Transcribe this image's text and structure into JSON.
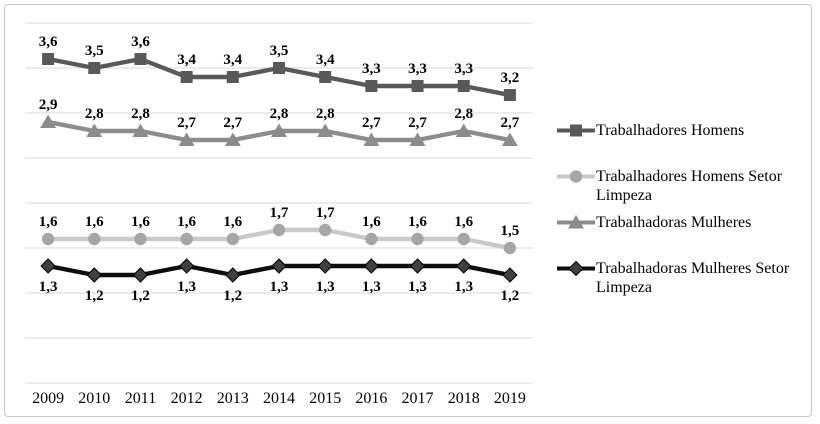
{
  "chart_data": {
    "type": "line",
    "title": "",
    "xlabel": "",
    "ylabel": "",
    "categories": [
      "2009",
      "2010",
      "2011",
      "2012",
      "2013",
      "2014",
      "2015",
      "2016",
      "2017",
      "2018",
      "2019"
    ],
    "ylim": [
      0,
      4
    ],
    "grid_step": 0.5,
    "grid": true,
    "y_axis_labels_visible": false,
    "decimal_separator": ",",
    "legend_position": "right",
    "series": [
      {
        "name": "Trabalhadores Homens",
        "marker": "square",
        "color": "#595959",
        "marker_color": "#595959",
        "label_position": "above",
        "values": [
          3.6,
          3.5,
          3.6,
          3.4,
          3.4,
          3.5,
          3.4,
          3.3,
          3.3,
          3.3,
          3.2
        ],
        "labels": [
          "3,6",
          "3,5",
          "3,6",
          "3,4",
          "3,4",
          "3,5",
          "3,4",
          "3,3",
          "3,3",
          "3,3",
          "3,2"
        ]
      },
      {
        "name": "Trabalhadores Homens Setor\nLimpeza",
        "marker": "circle",
        "color": "#c9c9c9",
        "marker_color": "#a6a6a6",
        "label_position": "above",
        "values": [
          1.6,
          1.6,
          1.6,
          1.6,
          1.6,
          1.7,
          1.7,
          1.6,
          1.6,
          1.6,
          1.5
        ],
        "labels": [
          "1,6",
          "1,6",
          "1,6",
          "1,6",
          "1,6",
          "1,7",
          "1,7",
          "1,6",
          "1,6",
          "1,6",
          "1,5"
        ]
      },
      {
        "name": "Trabalhadoras Mulheres",
        "marker": "triangle",
        "color": "#8c8c8c",
        "marker_color": "#8c8c8c",
        "label_position": "above",
        "values": [
          2.9,
          2.8,
          2.8,
          2.7,
          2.7,
          2.8,
          2.8,
          2.7,
          2.7,
          2.8,
          2.7
        ],
        "labels": [
          "2,9",
          "2,8",
          "2,8",
          "2,7",
          "2,7",
          "2,8",
          "2,8",
          "2,7",
          "2,7",
          "2,8",
          "2,7"
        ]
      },
      {
        "name": "Trabalhadoras Mulheres Setor\nLimpeza",
        "marker": "diamond",
        "color": "#0d0d0d",
        "marker_color": "#404040",
        "label_position": "below",
        "values": [
          1.3,
          1.2,
          1.2,
          1.3,
          1.2,
          1.3,
          1.3,
          1.3,
          1.3,
          1.3,
          1.2
        ],
        "labels": [
          "1,3",
          "1,2",
          "1,2",
          "1,3",
          "1,2",
          "1,3",
          "1,3",
          "1,3",
          "1,3",
          "1,3",
          "1,2"
        ]
      }
    ]
  },
  "colors": {
    "gridline": "#d9d9d9",
    "figure_border": "#c6c6c6",
    "data_label": "#000000",
    "axis_label": "#000000"
  }
}
